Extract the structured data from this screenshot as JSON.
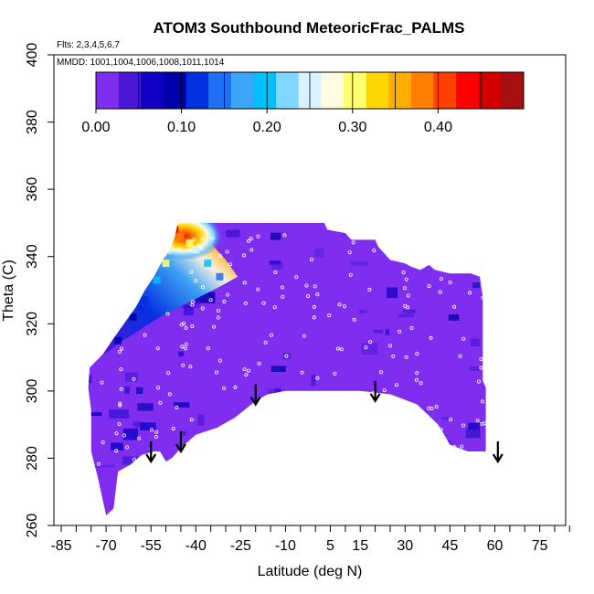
{
  "chart_data": {
    "type": "heatmap",
    "title": "ATOM3 Southbound MeteoricFrac_PALMS",
    "flights_label": "Flts: 2,3,4,5,6,7",
    "dates_label": "MMDD: 1001,1004,1006,1008,1011,1014",
    "xlabel": "Latitude (deg N)",
    "ylabel": "Theta (C)",
    "xlim": [
      -85,
      85
    ],
    "ylim": [
      260,
      400
    ],
    "x_tick_labels": [
      "-85",
      "-70",
      "-55",
      "-40",
      "-25",
      "-10",
      "5",
      "15",
      "30",
      "45",
      "60",
      "75"
    ],
    "x_tick_values": [
      -85,
      -70,
      -55,
      -40,
      -25,
      -10,
      5,
      15,
      30,
      45,
      60,
      75
    ],
    "x_minor_tick_values": [
      -80,
      -75,
      -65,
      -60,
      -50,
      -45,
      -35,
      -30,
      -20,
      -15,
      -5,
      0,
      10,
      20,
      25,
      35,
      40,
      50,
      55,
      65,
      70,
      80,
      85
    ],
    "y_tick_labels": [
      "260",
      "280",
      "300",
      "320",
      "340",
      "360",
      "380",
      "400"
    ],
    "y_tick_values": [
      260,
      280,
      300,
      320,
      340,
      360,
      380,
      400
    ],
    "colorbar": {
      "range": [
        0,
        0.5
      ],
      "tick_labels": [
        "0.00",
        "0.10",
        "0.20",
        "0.30",
        "0.40"
      ],
      "tick_values": [
        0,
        0.1,
        0.2,
        0.3,
        0.4
      ],
      "colors": [
        "#7f2ef0",
        "#4a17d6",
        "#1000c4",
        "#0000a8",
        "#0030e0",
        "#1f6ff0",
        "#3aa6f5",
        "#00c0ff",
        "#7fd6ff",
        "#d9f2ff",
        "#fffbe0",
        "#ffff70",
        "#ffd700",
        "#ffae00",
        "#ff8000",
        "#ff4000",
        "#ff0000",
        "#d40000",
        "#a61010"
      ]
    },
    "data_region": {
      "outline": [
        [
          -70,
          263
        ],
        [
          -73,
          275
        ],
        [
          -75,
          282
        ],
        [
          -75,
          294
        ],
        [
          -76,
          301
        ],
        [
          -75.5,
          307
        ],
        [
          -71,
          311
        ],
        [
          -68,
          315
        ],
        [
          -64,
          320
        ],
        [
          -60,
          325
        ],
        [
          -57,
          330
        ],
        [
          -54,
          334
        ],
        [
          -51,
          339
        ],
        [
          -48.5,
          342
        ],
        [
          -47,
          346
        ],
        [
          -46,
          350
        ],
        [
          -20,
          350
        ],
        [
          -5,
          350
        ],
        [
          3,
          350
        ],
        [
          4,
          348
        ],
        [
          10,
          347
        ],
        [
          12,
          345
        ],
        [
          20,
          345
        ],
        [
          21,
          343
        ],
        [
          23,
          341
        ],
        [
          25,
          339
        ],
        [
          30,
          338
        ],
        [
          32,
          337
        ],
        [
          35,
          336
        ],
        [
          38,
          337.5
        ],
        [
          40,
          336
        ],
        [
          45,
          335
        ],
        [
          52,
          335
        ],
        [
          55,
          334
        ],
        [
          56,
          328
        ],
        [
          56,
          303
        ],
        [
          57,
          301
        ],
        [
          57,
          282
        ],
        [
          51,
          282
        ],
        [
          45,
          284
        ],
        [
          41,
          290
        ],
        [
          34,
          296
        ],
        [
          25,
          299
        ],
        [
          15,
          300
        ],
        [
          5,
          300
        ],
        [
          -10,
          300
        ],
        [
          -16,
          299
        ],
        [
          -20,
          297
        ],
        [
          -27,
          292
        ],
        [
          -33,
          289
        ],
        [
          -40,
          287
        ],
        [
          -45,
          283
        ],
        [
          -48,
          280
        ],
        [
          -50,
          279
        ],
        [
          -52,
          282
        ],
        [
          -54,
          282
        ],
        [
          -58,
          281
        ],
        [
          -62,
          278
        ],
        [
          -66,
          276
        ],
        [
          -67.5,
          265
        ]
      ],
      "background_value": 0.02
    },
    "high_meteoric_band": {
      "description_values": "frac up to about 0.45 near lat -48, theta 342-350; decreasing to ~0.08 toward lat -68, theta 312",
      "points": [
        {
          "lat": -47,
          "theta": 348,
          "value": 0.45
        },
        {
          "lat": -45,
          "theta": 346,
          "value": 0.38
        },
        {
          "lat": -42,
          "theta": 344,
          "value": 0.3
        },
        {
          "lat": -40,
          "theta": 342,
          "value": 0.25
        },
        {
          "lat": -36,
          "theta": 338,
          "value": 0.2
        },
        {
          "lat": -32,
          "theta": 334,
          "value": 0.15
        },
        {
          "lat": -50,
          "theta": 338,
          "value": 0.3
        },
        {
          "lat": -53,
          "theta": 333,
          "value": 0.2
        },
        {
          "lat": -57,
          "theta": 327,
          "value": 0.13
        },
        {
          "lat": -61,
          "theta": 322,
          "value": 0.1
        },
        {
          "lat": -66,
          "theta": 315,
          "value": 0.08
        }
      ]
    },
    "arrows": [
      {
        "lat": -55,
        "theta": 285
      },
      {
        "lat": -45,
        "theta": 288
      },
      {
        "lat": -20,
        "theta": 302
      },
      {
        "lat": 20,
        "theta": 303
      },
      {
        "lat": 61,
        "theta": 285
      }
    ]
  }
}
